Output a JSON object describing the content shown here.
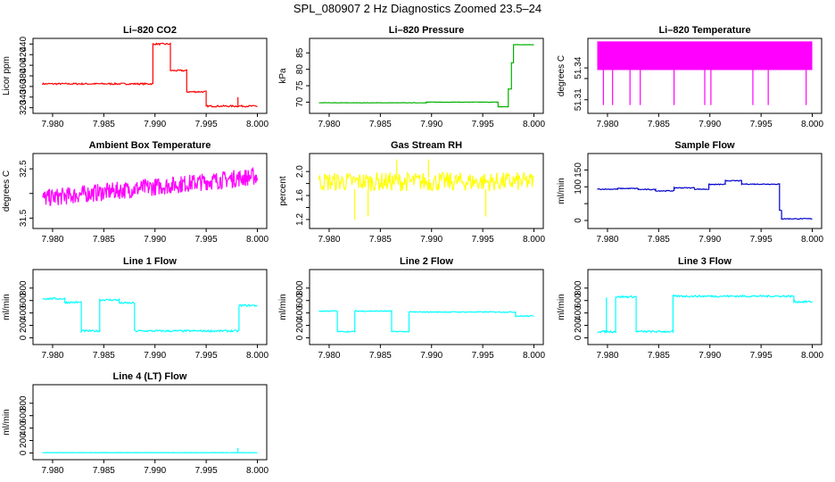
{
  "figure_title": "SPL_080907  2 Hz Diagnostics Zoomed 23.5–24",
  "chart_data": [
    {
      "type": "line",
      "title": "Li–820 CO2",
      "ylabel": "Licor ppm",
      "color": "#ff0000",
      "xlim": [
        7.979,
        8.0
      ],
      "ylim": [
        315,
        445
      ],
      "yticks": [
        320,
        340,
        360,
        380,
        400,
        420,
        440
      ],
      "xticks": [
        "7.980",
        "7.985",
        "7.990",
        "7.995",
        "8.000"
      ],
      "noise": 1.5,
      "segments": [
        [
          7.979,
          7.9898,
          365
        ],
        [
          7.9898,
          7.9915,
          440
        ],
        [
          7.9915,
          7.9931,
          390
        ],
        [
          7.9931,
          7.995,
          350
        ],
        [
          7.995,
          8.0,
          323
        ]
      ],
      "spikes": [
        [
          7.9981,
          323,
          340
        ]
      ]
    },
    {
      "type": "line",
      "title": "Li–820 Pressure",
      "ylabel": "kPa",
      "color": "#00b000",
      "xlim": [
        7.979,
        8.0
      ],
      "ylim": [
        67.5,
        88.5
      ],
      "yticks": [
        70,
        75,
        80,
        85
      ],
      "xticks": [
        "7.980",
        "7.985",
        "7.990",
        "7.995",
        "8.000"
      ],
      "noise": 0.05,
      "segments": [
        [
          7.979,
          7.9895,
          69.8
        ],
        [
          7.9895,
          7.9965,
          70.0
        ],
        [
          7.9965,
          7.9975,
          68.6
        ],
        [
          7.9975,
          7.9978,
          74
        ],
        [
          7.9978,
          7.998,
          82
        ],
        [
          7.998,
          8.0,
          87.5
        ]
      ],
      "spikes": []
    },
    {
      "type": "line",
      "title": "Li–820 Temperature",
      "ylabel": "degrees C",
      "color": "#ff00ff",
      "xlim": [
        7.979,
        8.0
      ],
      "ylim": [
        51.3,
        51.365
      ],
      "yticks": [
        51.31,
        51.33,
        51.34
      ],
      "ytick_labels": [
        "51.31",
        "",
        "51.34"
      ],
      "xticks": [
        "7.980",
        "7.985",
        "7.990",
        "7.995",
        "8.000"
      ],
      "band": [
        51.338,
        51.365
      ],
      "segments": [
        [
          7.979,
          8.0,
          51.352
        ]
      ],
      "spikes": [
        [
          7.9796,
          51.338,
          51.305
        ],
        [
          7.9805,
          51.338,
          51.305
        ],
        [
          7.9822,
          51.338,
          51.305
        ],
        [
          7.9832,
          51.338,
          51.305
        ],
        [
          7.9865,
          51.338,
          51.305
        ],
        [
          7.9895,
          51.338,
          51.305
        ],
        [
          7.9901,
          51.338,
          51.305
        ],
        [
          7.9942,
          51.338,
          51.305
        ],
        [
          7.9957,
          51.338,
          51.305
        ],
        [
          7.9994,
          51.338,
          51.305
        ]
      ]
    },
    {
      "type": "line",
      "title": "Ambient Box Temperature",
      "ylabel": "degrees C",
      "color": "#ff00ff",
      "xlim": [
        7.979,
        8.0
      ],
      "ylim": [
        31.35,
        32.75
      ],
      "yticks": [
        31.5,
        32.0,
        32.5
      ],
      "ytick_labels": [
        "31.5",
        "",
        "32.5"
      ],
      "xticks": [
        "7.980",
        "7.985",
        "7.990",
        "7.995",
        "8.000"
      ],
      "noise": 0.18,
      "trend": [
        [
          7.979,
          31.9
        ],
        [
          8.0,
          32.35
        ]
      ],
      "segments": [],
      "spikes": []
    },
    {
      "type": "line",
      "title": "Gas Stream RH",
      "ylabel": "percent",
      "color": "#ffff00",
      "xlim": [
        7.979,
        8.0
      ],
      "ylim": [
        1.1,
        2.25
      ],
      "yticks": [
        1.2,
        1.4,
        1.6,
        1.8,
        2.0
      ],
      "ytick_labels": [
        "1.2",
        "",
        "1.6",
        "",
        "2.0"
      ],
      "xticks": [
        "7.980",
        "7.985",
        "7.990",
        "7.995",
        "8.000"
      ],
      "noise": 0.16,
      "segments": [
        [
          7.979,
          8.0,
          1.83
        ]
      ],
      "spikes": [
        [
          7.9825,
          1.7,
          1.2
        ],
        [
          7.9838,
          1.7,
          1.25
        ],
        [
          7.9953,
          1.7,
          1.25
        ],
        [
          7.9866,
          1.9,
          2.2
        ],
        [
          7.9897,
          1.9,
          2.2
        ]
      ]
    },
    {
      "type": "line",
      "title": "Sample Flow",
      "ylabel": "ml/min",
      "color": "#0000cc",
      "xlim": [
        7.979,
        8.0
      ],
      "ylim": [
        -15,
        190
      ],
      "yticks": [
        0,
        50,
        100,
        150
      ],
      "ytick_labels": [
        "0",
        "",
        "100",
        "150"
      ],
      "xticks": [
        "7.980",
        "7.985",
        "7.990",
        "7.995",
        "8.000"
      ],
      "noise": 1.2,
      "segments": [
        [
          7.979,
          7.981,
          93
        ],
        [
          7.981,
          7.983,
          95
        ],
        [
          7.983,
          7.9847,
          92
        ],
        [
          7.9847,
          7.9865,
          88
        ],
        [
          7.9865,
          7.9885,
          97
        ],
        [
          7.9885,
          7.9899,
          93
        ],
        [
          7.9899,
          7.9915,
          107
        ],
        [
          7.9915,
          7.9931,
          118
        ],
        [
          7.9931,
          7.9968,
          108
        ],
        [
          7.9968,
          7.997,
          30
        ],
        [
          7.997,
          8.0,
          5
        ]
      ],
      "spikes": []
    },
    {
      "type": "line",
      "title": "Line 1 Flow",
      "ylabel": "ml/min",
      "color": "#00ffff",
      "xlim": [
        7.979,
        8.0
      ],
      "ylim": [
        -60,
        1050
      ],
      "yticks": [
        0,
        200,
        400,
        600,
        800
      ],
      "xticks": [
        "7.980",
        "7.985",
        "7.990",
        "7.995",
        "8.000"
      ],
      "noise": 15,
      "segments": [
        [
          7.979,
          7.9812,
          630
        ],
        [
          7.9812,
          7.9828,
          570
        ],
        [
          7.9828,
          7.9846,
          110
        ],
        [
          7.9846,
          7.9865,
          610
        ],
        [
          7.9865,
          7.988,
          560
        ],
        [
          7.988,
          7.9982,
          110
        ],
        [
          7.9982,
          8.0,
          520
        ]
      ],
      "spikes": []
    },
    {
      "type": "line",
      "title": "Line 2 Flow",
      "ylabel": "ml/min",
      "color": "#00ffff",
      "xlim": [
        7.979,
        8.0
      ],
      "ylim": [
        -60,
        1050
      ],
      "yticks": [
        0,
        200,
        400,
        600,
        800
      ],
      "xticks": [
        "7.980",
        "7.985",
        "7.990",
        "7.995",
        "8.000"
      ],
      "noise": 8,
      "segments": [
        [
          7.979,
          7.9808,
          430
        ],
        [
          7.9808,
          7.9825,
          100
        ],
        [
          7.9825,
          7.9861,
          430
        ],
        [
          7.9861,
          7.9878,
          100
        ],
        [
          7.9878,
          7.9982,
          415
        ],
        [
          7.9982,
          8.0,
          350
        ]
      ],
      "spikes": []
    },
    {
      "type": "line",
      "title": "Line 3 Flow",
      "ylabel": "ml/min",
      "color": "#00ffff",
      "xlim": [
        7.979,
        8.0
      ],
      "ylim": [
        -60,
        1050
      ],
      "yticks": [
        0,
        200,
        400,
        600,
        800
      ],
      "xticks": [
        "7.980",
        "7.985",
        "7.990",
        "7.995",
        "8.000"
      ],
      "noise": 15,
      "segments": [
        [
          7.979,
          7.9808,
          100
        ],
        [
          7.9808,
          7.9828,
          660
        ],
        [
          7.9828,
          7.9845,
          100
        ],
        [
          7.9845,
          7.9864,
          100
        ],
        [
          7.9864,
          7.9982,
          670
        ],
        [
          7.9982,
          8.0,
          580
        ]
      ],
      "spikes": [
        [
          7.9799,
          100,
          650
        ]
      ]
    },
    {
      "type": "line",
      "title": "Line 4 (LT) Flow",
      "ylabel": "ml/min",
      "color": "#00ffff",
      "xlim": [
        7.979,
        8.0
      ],
      "ylim": [
        -60,
        1050
      ],
      "yticks": [
        0,
        200,
        400,
        600,
        800
      ],
      "xticks": [
        "7.980",
        "7.985",
        "7.990",
        "7.995",
        "8.000"
      ],
      "noise": 2,
      "segments": [
        [
          7.979,
          8.0,
          5
        ]
      ],
      "spikes": [
        [
          7.9981,
          5,
          80
        ]
      ]
    }
  ]
}
